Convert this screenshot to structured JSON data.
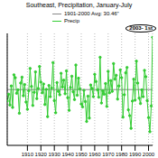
{
  "chart_data": {
    "type": "line",
    "title": "Southeast, Precipitation, January-July",
    "x": [
      1895,
      1896,
      1897,
      1898,
      1899,
      1900,
      1901,
      1902,
      1903,
      1904,
      1905,
      1906,
      1907,
      1908,
      1909,
      1910,
      1911,
      1912,
      1913,
      1914,
      1915,
      1916,
      1917,
      1918,
      1919,
      1920,
      1921,
      1922,
      1923,
      1924,
      1925,
      1926,
      1927,
      1928,
      1929,
      1930,
      1931,
      1932,
      1933,
      1934,
      1935,
      1936,
      1937,
      1938,
      1939,
      1940,
      1941,
      1942,
      1943,
      1944,
      1945,
      1946,
      1947,
      1948,
      1949,
      1950,
      1951,
      1952,
      1953,
      1954,
      1955,
      1956,
      1957,
      1958,
      1959,
      1960,
      1961,
      1962,
      1963,
      1964,
      1965,
      1966,
      1967,
      1968,
      1969,
      1970,
      1971,
      1972,
      1973,
      1974,
      1975,
      1976,
      1977,
      1978,
      1979,
      1980,
      1981,
      1982,
      1983,
      1984,
      1985,
      1986,
      1987,
      1988,
      1989,
      1990,
      1991,
      1992,
      1993,
      1994,
      1995,
      1996,
      1997,
      1998,
      1999,
      2000,
      2001,
      2002,
      2003
    ],
    "series": [
      {
        "name": "Precip",
        "color": "#33cc33",
        "marker": "circle",
        "values": [
          28.1,
          29.5,
          27.3,
          31.2,
          26.8,
          33.5,
          32.9,
          29.7,
          30.4,
          25.6,
          31.8,
          33.0,
          29.2,
          31.5,
          27.9,
          26.4,
          30.2,
          34.8,
          31.1,
          27.2,
          29.9,
          34.1,
          28.6,
          30.7,
          35.2,
          32.0,
          29.8,
          31.6,
          27.4,
          30.5,
          24.9,
          31.3,
          29.0,
          30.8,
          36.0,
          28.2,
          25.7,
          31.9,
          30.1,
          29.4,
          33.8,
          31.0,
          32.4,
          29.6,
          34.3,
          28.8,
          26.2,
          30.9,
          33.2,
          30.0,
          28.4,
          35.5,
          29.3,
          32.8,
          30.6,
          27.5,
          26.9,
          30.3,
          28.0,
          23.9,
          29.1,
          24.6,
          31.4,
          30.7,
          29.0,
          33.6,
          32.1,
          30.4,
          28.9,
          37.1,
          27.7,
          30.2,
          29.5,
          31.7,
          27.0,
          34.2,
          29.8,
          32.3,
          30.1,
          35.8,
          32.6,
          33.4,
          28.5,
          31.2,
          34.5,
          32.9,
          24.8,
          29.4,
          33.9,
          35.0,
          26.3,
          25.1,
          22.5,
          28.1,
          32.6,
          28.3,
          36.3,
          31.8,
          28.7,
          27.6,
          30.4,
          29.0,
          34.4,
          33.1,
          28.2,
          24.7,
          21.8,
          27.1,
          41.2
        ]
      }
    ],
    "mean_line": {
      "label": "1901-2000 Avg: 30.46\"",
      "value": 30.46,
      "color": "#888888"
    },
    "annotation": "2003- 1st",
    "xlim": [
      1895,
      2003
    ],
    "xticks": [
      1910,
      1920,
      1930,
      1940,
      1950,
      1960,
      1970,
      1980,
      1990,
      2000
    ],
    "ylim": [
      19,
      42
    ],
    "grid": true,
    "tick_labels": "x"
  }
}
